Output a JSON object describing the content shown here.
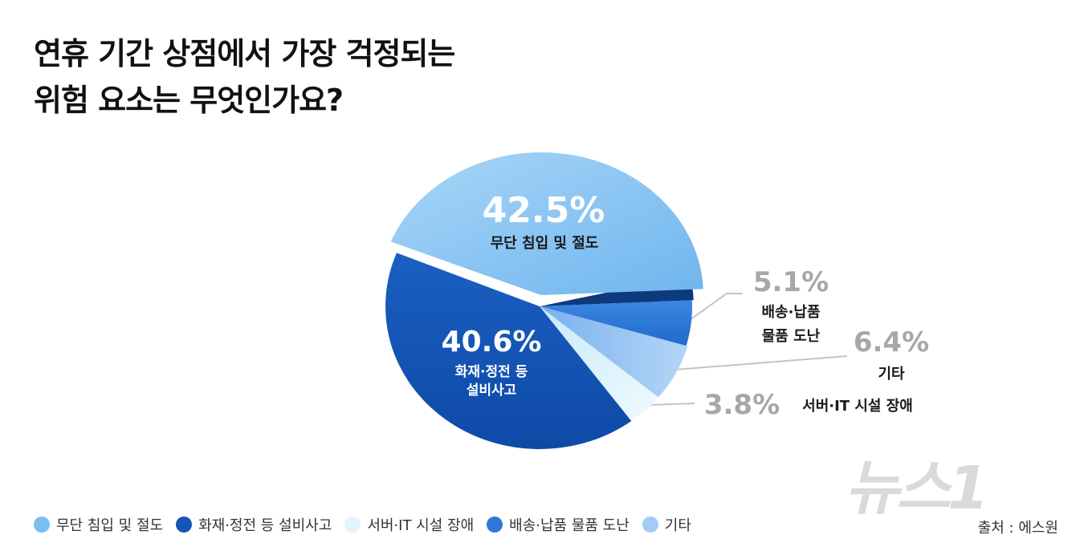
{
  "title": {
    "line1": "연휴 기간 상점에서 가장 걱정되는",
    "line2": "위험 요소는 무엇인가요?"
  },
  "chart_data": {
    "type": "pie",
    "title": "연휴 기간 상점에서 가장 걱정되는 위험 요소는 무엇인가요?",
    "slices": [
      {
        "name": "무단 침입 및 절도",
        "value": 42.5,
        "label": "42.5%",
        "display_name": "무단 침입 및 절도",
        "color": "#8ec8f5"
      },
      {
        "name": "배송·납품 물품 도난",
        "value": 5.1,
        "label": "5.1%",
        "display_name": "배송·납품 물품 도난",
        "color": "#2d7ad6"
      },
      {
        "name": "기타",
        "value": 6.4,
        "label": "6.4%",
        "display_name": "기타",
        "color": "#a5cbf5"
      },
      {
        "name": "서버·IT 시설 장애",
        "value": 3.8,
        "label": "3.8%",
        "display_name": "서버·IT 시설 장애",
        "color": "#e1f4fc"
      },
      {
        "name": "화재·정전 등 설비사고",
        "value": 40.6,
        "label": "40.6%",
        "display_name": "화재·정전 등 설비사고",
        "color": "#1554b8"
      }
    ]
  },
  "outside_labels": {
    "delivery_pct": "5.1%",
    "delivery_name_1": "배송·납품",
    "delivery_name_2": "물품 도난",
    "other_pct": "6.4%",
    "other_name": "기타",
    "server_pct": "3.8%",
    "server_name": "서버·IT 시설 장애"
  },
  "inside_labels": {
    "theft_pct": "42.5%",
    "theft_name": "무단 침입 및 절도",
    "fire_pct": "40.6%",
    "fire_name_1": "화재·정전 등",
    "fire_name_2": "설비사고"
  },
  "legend": [
    {
      "label": "무단 침입 및 절도",
      "color": "#7cbdf0"
    },
    {
      "label": "화재·정전 등 설비사고",
      "color": "#1554b8"
    },
    {
      "label": "서버·IT 시설 장애",
      "color": "#e1f4fc"
    },
    {
      "label": "배송·납품 물품 도난",
      "color": "#2d7ad6"
    },
    {
      "label": "기타",
      "color": "#a5cbf5"
    }
  ],
  "source": "출처 : 에스원",
  "watermark": "뉴스1"
}
